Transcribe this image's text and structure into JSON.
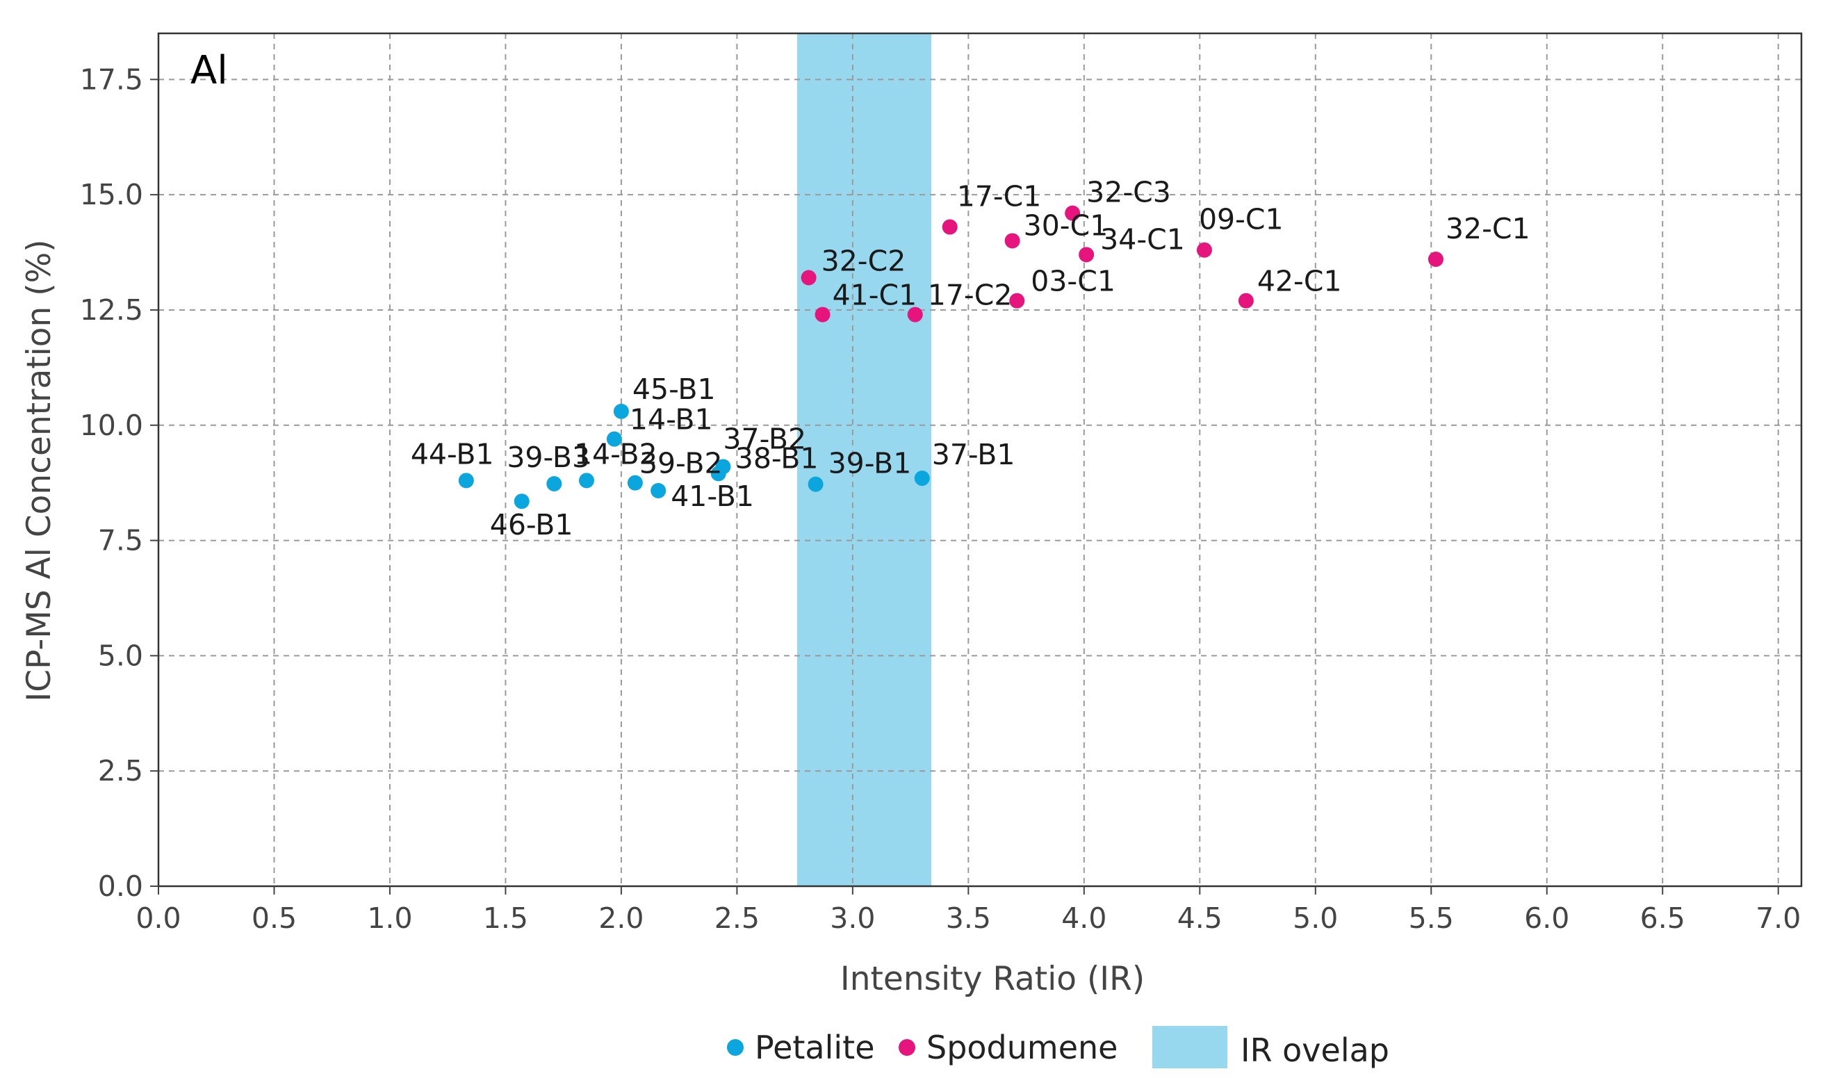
{
  "chart_data": {
    "type": "scatter",
    "panel_label": "Al",
    "xlabel": "Intensity Ratio (IR)",
    "ylabel": "ICP-MS Al Concentration (%)",
    "xlim": [
      0,
      7.1
    ],
    "ylim": [
      0,
      18.5
    ],
    "x_ticks": [
      "0.0",
      "0.5",
      "1.0",
      "1.5",
      "2.0",
      "2.5",
      "3.0",
      "3.5",
      "4.0",
      "4.5",
      "5.0",
      "5.5",
      "6.0",
      "6.5",
      "7.0"
    ],
    "y_ticks": [
      "0.0",
      "2.5",
      "5.0",
      "7.5",
      "10.0",
      "12.5",
      "15.0",
      "17.5"
    ],
    "grid": true,
    "ir_overlap": {
      "x0": 2.76,
      "x1": 3.34,
      "label": "IR ovelap",
      "color": "#97d8ef"
    },
    "series": [
      {
        "name": "Petalite",
        "color": "#0aa6dd",
        "points": [
          {
            "label": "44-B1",
            "x": 1.33,
            "y": 8.8
          },
          {
            "label": "46-B1",
            "x": 1.57,
            "y": 8.35
          },
          {
            "label": "39-B3",
            "x": 1.71,
            "y": 8.73
          },
          {
            "label": "14-B2",
            "x": 1.85,
            "y": 8.8
          },
          {
            "label": "45-B1",
            "x": 2.0,
            "y": 10.3
          },
          {
            "label": "14-B1",
            "x": 1.97,
            "y": 9.7
          },
          {
            "label": "39-B2",
            "x": 2.06,
            "y": 8.75
          },
          {
            "label": "41-B1",
            "x": 2.16,
            "y": 8.58
          },
          {
            "label": "37-B2",
            "x": 2.44,
            "y": 9.1
          },
          {
            "label": "38-B1",
            "x": 2.42,
            "y": 8.95
          },
          {
            "label": "39-B1",
            "x": 2.84,
            "y": 8.72
          },
          {
            "label": "37-B1",
            "x": 3.3,
            "y": 8.85
          }
        ]
      },
      {
        "name": "Spodumene",
        "color": "#e6157e",
        "points": [
          {
            "label": "32-C2",
            "x": 2.81,
            "y": 13.2
          },
          {
            "label": "41-C1",
            "x": 2.87,
            "y": 12.4
          },
          {
            "label": "17-C2",
            "x": 3.27,
            "y": 12.4
          },
          {
            "label": "17-C1",
            "x": 3.42,
            "y": 14.3
          },
          {
            "label": "30-C1",
            "x": 3.69,
            "y": 14.0
          },
          {
            "label": "03-C1",
            "x": 3.71,
            "y": 12.7
          },
          {
            "label": "32-C3",
            "x": 3.95,
            "y": 14.6
          },
          {
            "label": "34-C1",
            "x": 4.01,
            "y": 13.7
          },
          {
            "label": "09-C1",
            "x": 4.52,
            "y": 13.8
          },
          {
            "label": "42-C1",
            "x": 4.7,
            "y": 12.7
          },
          {
            "label": "32-C1",
            "x": 5.52,
            "y": 13.6
          }
        ]
      }
    ]
  }
}
